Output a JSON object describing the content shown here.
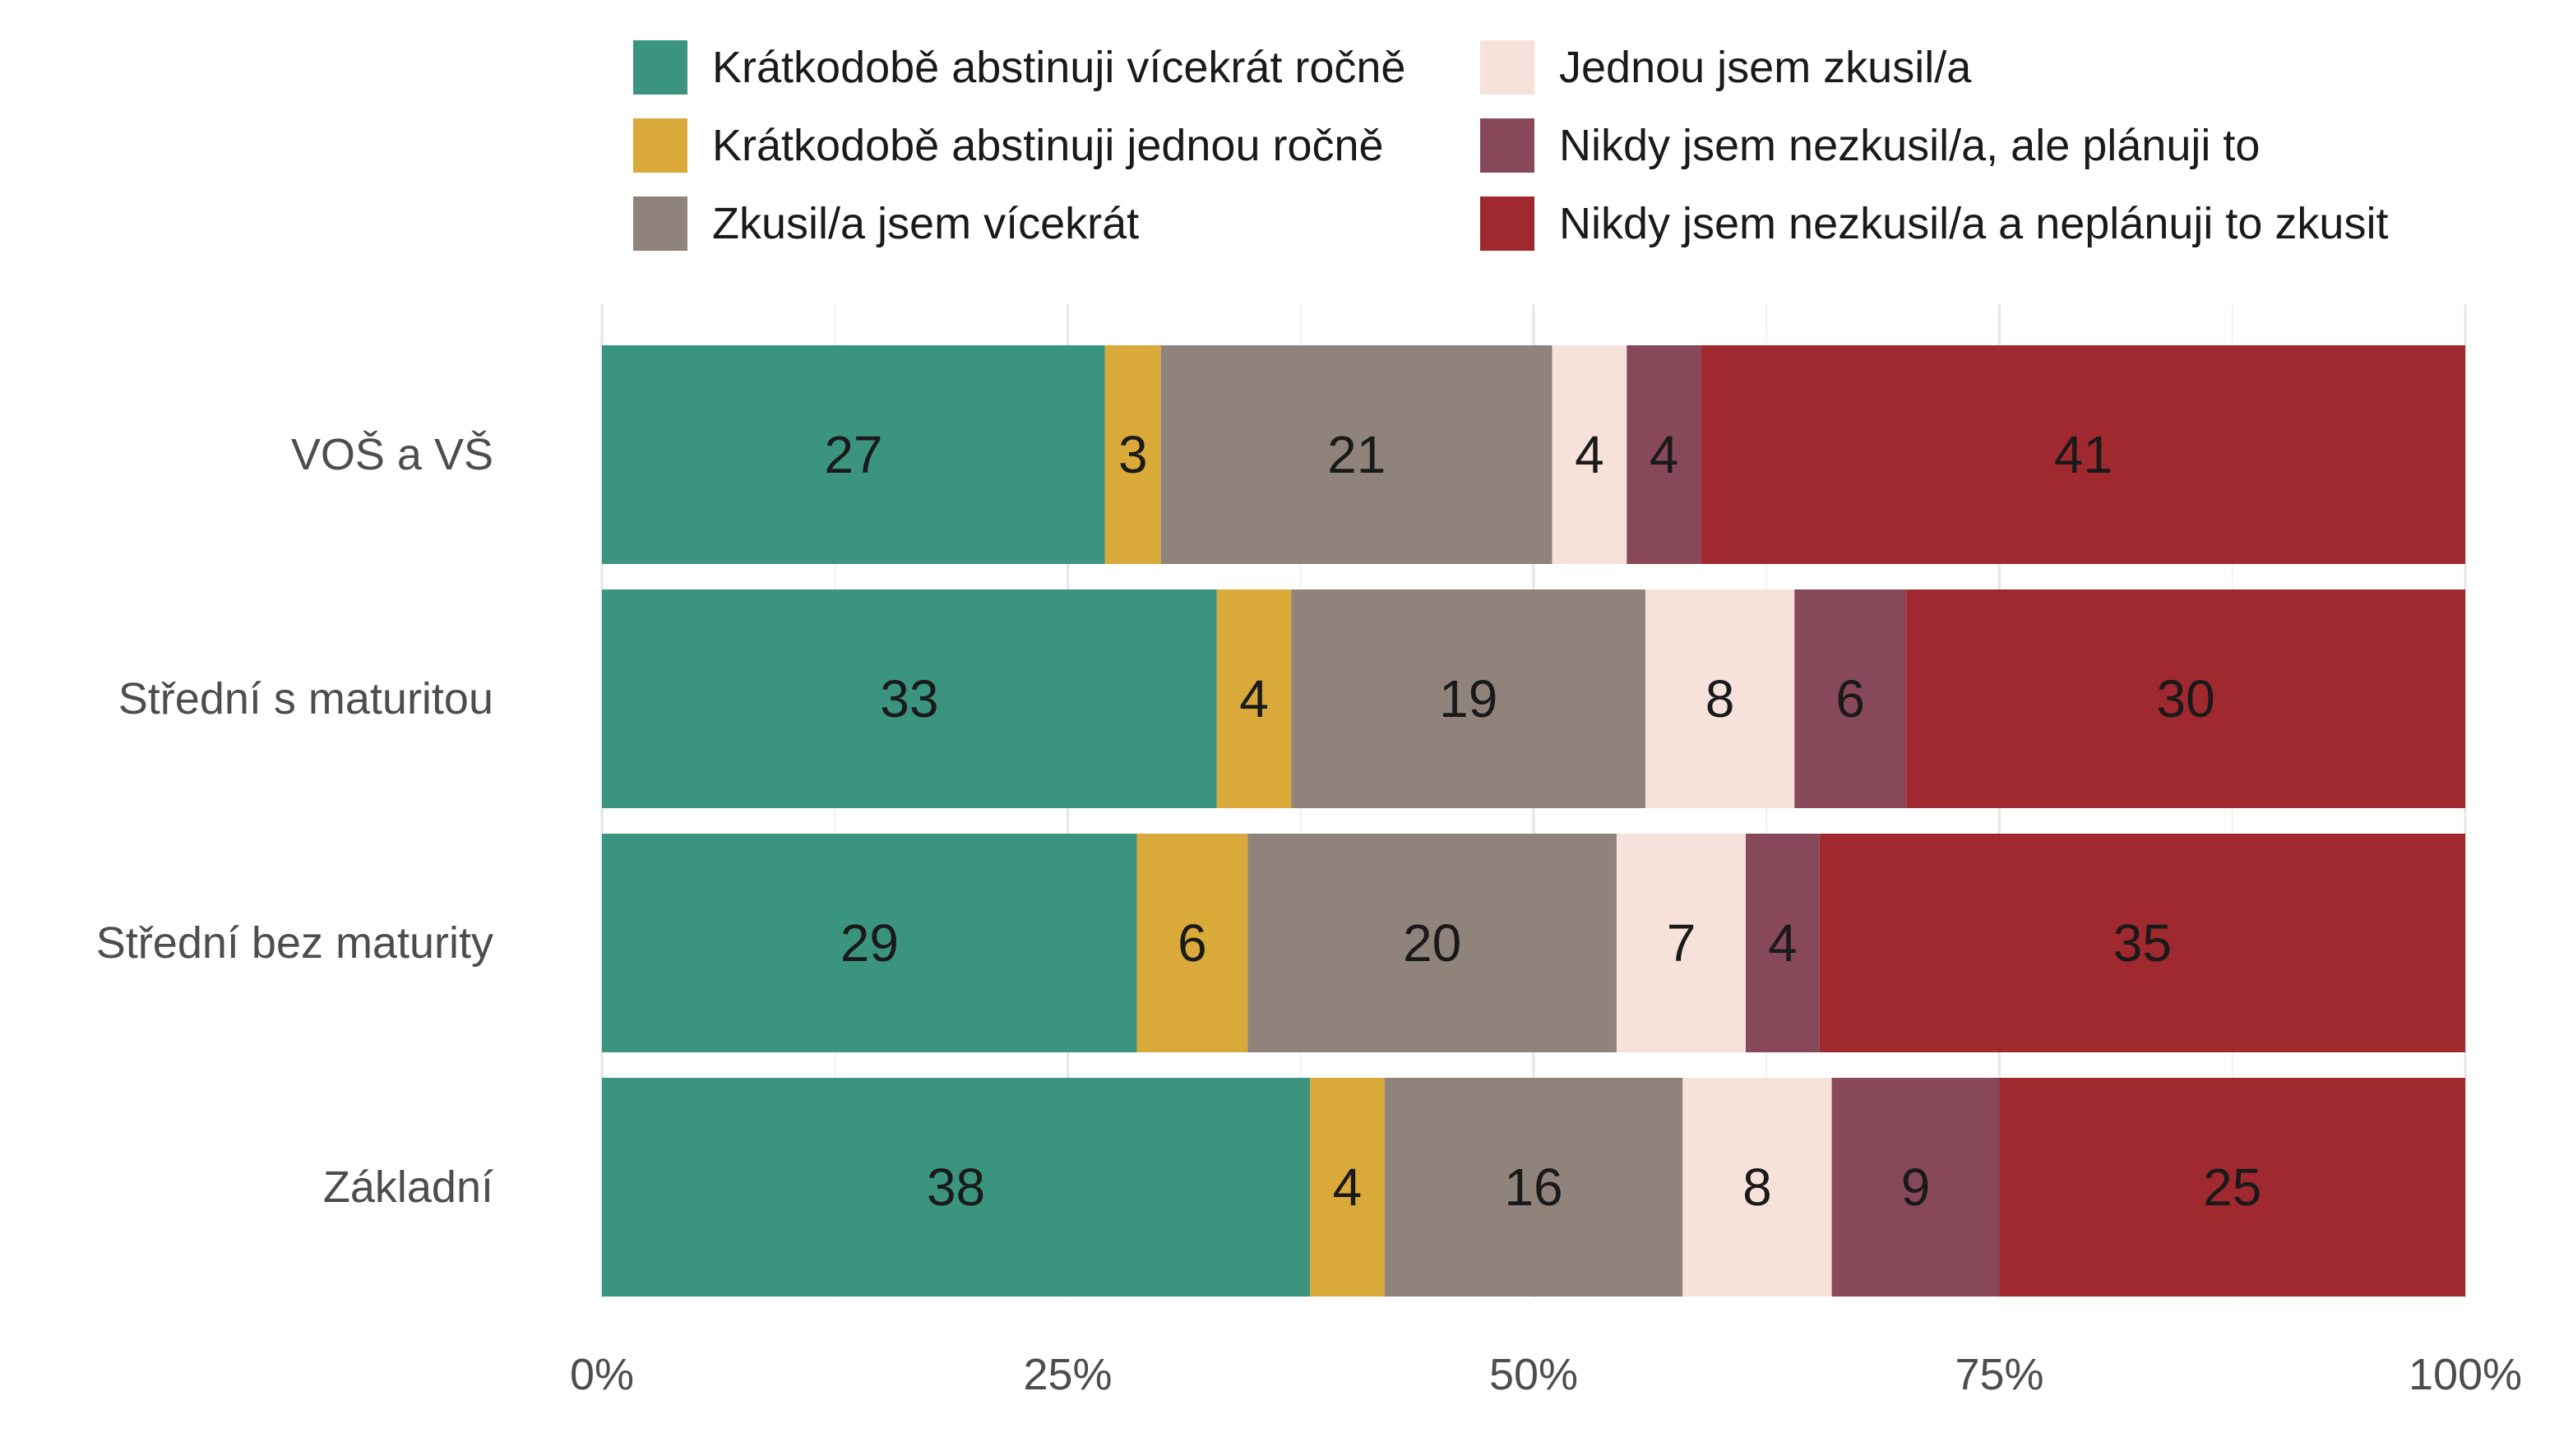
{
  "chart_data": {
    "type": "bar",
    "orientation": "horizontal",
    "stacked": true,
    "percent_scale": true,
    "title": "",
    "xlabel": "",
    "ylabel": "",
    "xlim": [
      0,
      100
    ],
    "grid": true,
    "legend_position": "top",
    "categories": [
      "VOŠ a VŠ",
      "Střední s maturitou",
      "Střední bez maturity",
      "Základní"
    ],
    "series": [
      {
        "name": "Krátkodobě abstinuji vícekrát ročně",
        "color": "#3A9480",
        "values": [
          27,
          33,
          29,
          38
        ]
      },
      {
        "name": "Krátkodobě abstinuji jednou ročně",
        "color": "#D9A93A",
        "values": [
          3,
          4,
          6,
          4
        ]
      },
      {
        "name": "Zkusil/a jsem vícekrát",
        "color": "#8F837C",
        "values": [
          21,
          19,
          20,
          16
        ]
      },
      {
        "name": "Jednou jsem zkusil/a",
        "color": "#F7E1DB",
        "values": [
          4,
          8,
          7,
          8
        ]
      },
      {
        "name": "Nikdy jsem nezkusil/a, ale plánuji to",
        "color": "#874959",
        "values": [
          4,
          6,
          4,
          9
        ]
      },
      {
        "name": "Nikdy jsem nezkusil/a a neplánuji to zkusit",
        "color": "#A0292F",
        "values": [
          41,
          30,
          35,
          25
        ]
      }
    ],
    "x_ticks": [
      {
        "value": 0,
        "label": "0%"
      },
      {
        "value": 25,
        "label": "25%"
      },
      {
        "value": 50,
        "label": "50%"
      },
      {
        "value": 75,
        "label": "75%"
      },
      {
        "value": 100,
        "label": "100%"
      }
    ]
  }
}
